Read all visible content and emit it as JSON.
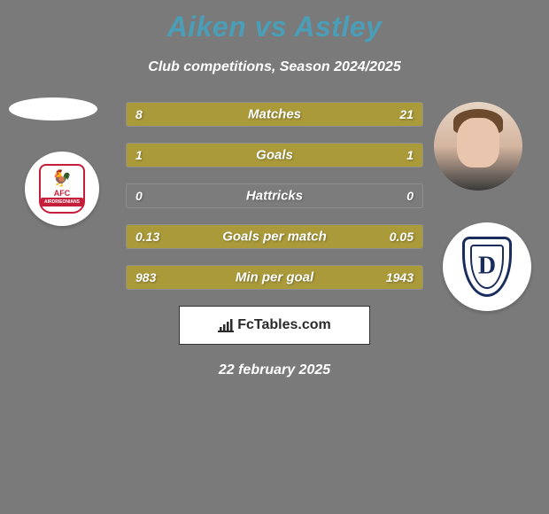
{
  "title": "Aiken vs Astley",
  "subtitle": "Club competitions, Season 2024/2025",
  "colors": {
    "background": "#7a7a7a",
    "title_color": "#4a9eb8",
    "text_color": "#ffffff",
    "bar_color": "#aa9a3a",
    "footer_bg": "#ffffff",
    "footer_text": "#2a2a2a",
    "club_left_primary": "#c41e3a",
    "club_right_primary": "#1a2d5c"
  },
  "players": {
    "left": {
      "name": "Aiken",
      "club_abbrev": "AFC",
      "club_banner": "AIRDRIEONIANS"
    },
    "right": {
      "name": "Astley",
      "club_abbrev": "D"
    }
  },
  "stats": [
    {
      "label": "Matches",
      "left_value": "8",
      "right_value": "21",
      "left_width_pct": 27.6,
      "right_width_pct": 72.4
    },
    {
      "label": "Goals",
      "left_value": "1",
      "right_value": "1",
      "left_width_pct": 50,
      "right_width_pct": 50
    },
    {
      "label": "Hattricks",
      "left_value": "0",
      "right_value": "0",
      "left_width_pct": 0,
      "right_width_pct": 0
    },
    {
      "label": "Goals per match",
      "left_value": "0.13",
      "right_value": "0.05",
      "left_width_pct": 72.2,
      "right_width_pct": 27.8
    },
    {
      "label": "Min per goal",
      "left_value": "983",
      "right_value": "1943",
      "left_width_pct": 33.6,
      "right_width_pct": 66.4
    }
  ],
  "footer_brand": "FcTables.com",
  "date": "22 february 2025",
  "typography": {
    "title_fontsize": 32,
    "subtitle_fontsize": 16,
    "stat_label_fontsize": 15,
    "stat_value_fontsize": 14,
    "date_fontsize": 16
  }
}
